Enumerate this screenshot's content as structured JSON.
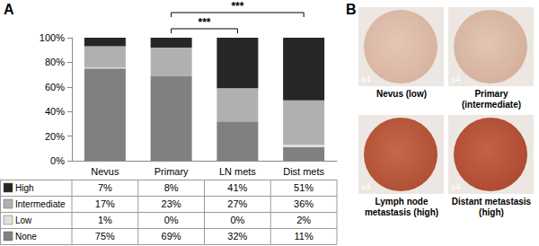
{
  "chart_data": {
    "type": "bar",
    "panel_label": "A",
    "categories": [
      "Nevus",
      "Primary",
      "LN mets",
      "Dist mets"
    ],
    "series": [
      {
        "name": "High",
        "color": "#262626",
        "values": [
          7,
          8,
          41,
          51
        ],
        "value_labels": [
          "7%",
          "8%",
          "41%",
          "51%"
        ]
      },
      {
        "name": "Intermediate",
        "color": "#b0b0b0",
        "values": [
          17,
          23,
          27,
          36
        ],
        "value_labels": [
          "17%",
          "23%",
          "27%",
          "36%"
        ]
      },
      {
        "name": "Low",
        "color": "#e0e0e0",
        "values": [
          1,
          0,
          0,
          2
        ],
        "value_labels": [
          "1%",
          "0%",
          "0%",
          "2%"
        ]
      },
      {
        "name": "None",
        "color": "#808080",
        "values": [
          75,
          69,
          32,
          11
        ],
        "value_labels": [
          "75%",
          "69%",
          "32%",
          "11%"
        ]
      }
    ],
    "stacked": true,
    "grid": false,
    "ylim": [
      0,
      100
    ],
    "yticks": [
      {
        "value": 0,
        "label": "0%"
      },
      {
        "value": 20,
        "label": "20%"
      },
      {
        "value": 40,
        "label": "40%"
      },
      {
        "value": 60,
        "label": "60%"
      },
      {
        "value": 80,
        "label": "80%"
      },
      {
        "value": 100,
        "label": "100%"
      }
    ],
    "annotations": [
      {
        "from": "Primary",
        "to": "LN mets",
        "label": "***"
      },
      {
        "from": "Primary",
        "to": "Dist mets",
        "label": "***"
      }
    ]
  },
  "panel_b": {
    "label": "B",
    "images": [
      {
        "caption": "Nevus (low)",
        "magnification": "x4"
      },
      {
        "caption": "Primary (intermediate)",
        "magnification": "x4"
      },
      {
        "caption": "Lymph node metastasis (high)",
        "magnification": "x4"
      },
      {
        "caption": "Distant metastasis (high)",
        "magnification": "x4"
      }
    ]
  }
}
